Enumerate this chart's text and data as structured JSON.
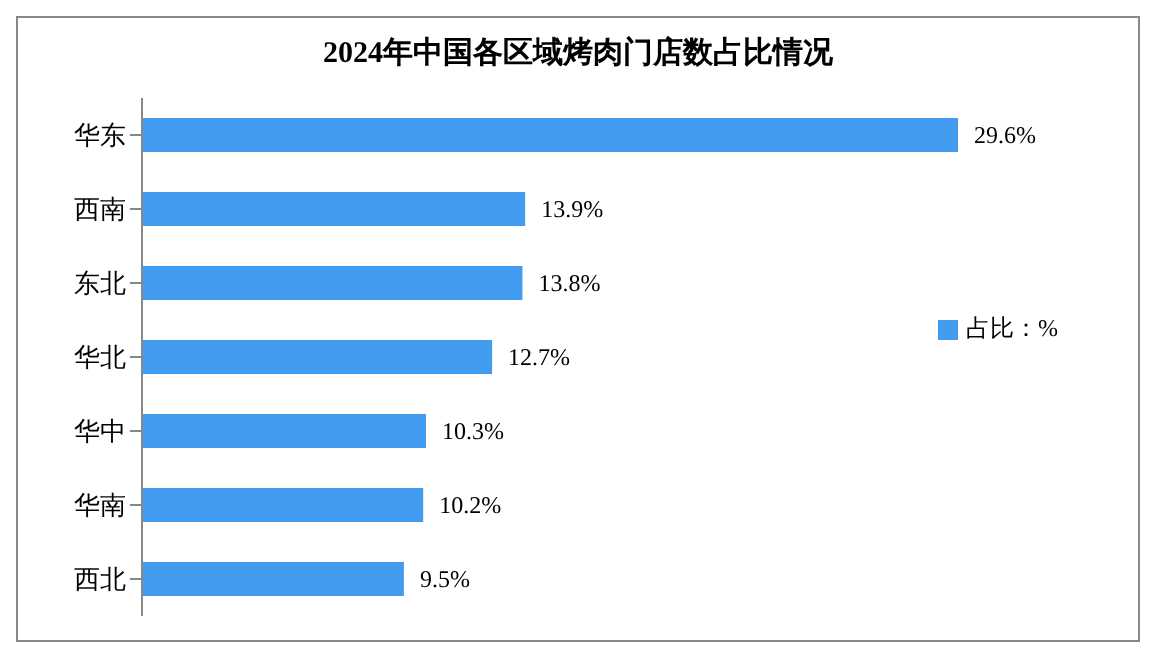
{
  "chart_data": {
    "type": "bar",
    "orientation": "horizontal",
    "title": "2024年中国各区域烤肉门店数占比情况",
    "categories": [
      "华东",
      "西南",
      "东北",
      "华北",
      "华中",
      "华南",
      "西北"
    ],
    "series": [
      {
        "name": "占比：%",
        "color": "#419cf0",
        "values": [
          29.6,
          13.9,
          13.8,
          12.7,
          10.3,
          10.2,
          9.5
        ],
        "value_labels": [
          "29.6%",
          "13.9%",
          "13.8%",
          "12.7%",
          "10.3%",
          "10.2%",
          "9.5%"
        ]
      }
    ],
    "legend": "right",
    "grid": false
  }
}
